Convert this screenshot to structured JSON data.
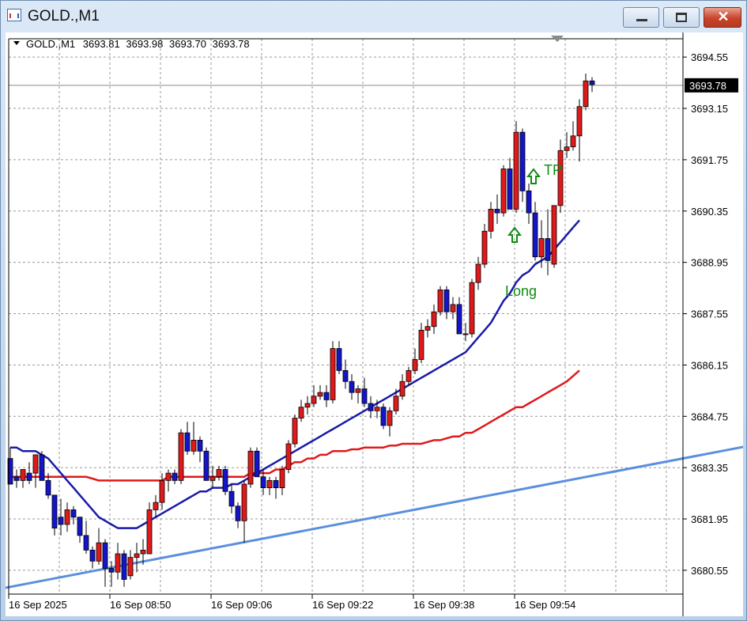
{
  "window": {
    "title": "GOLD.,M1"
  },
  "chart_header": {
    "symbol": "GOLD.,M1",
    "open": "3693.81",
    "high": "3693.98",
    "low": "3693.70",
    "close": "3693.78"
  },
  "price_axis": {
    "labels": [
      "3694.55",
      "3693.15",
      "3691.75",
      "3690.35",
      "3688.95",
      "3687.55",
      "3686.15",
      "3684.75",
      "3683.35",
      "3681.95",
      "3680.55"
    ],
    "current_price": "3693.78"
  },
  "time_axis": {
    "labels": [
      "16 Sep 2025",
      "16 Sep 08:50",
      "16 Sep 09:06",
      "16 Sep 09:22",
      "16 Sep 09:38",
      "16 Sep 09:54"
    ]
  },
  "annotations": {
    "tp_label": "TP",
    "long_label": "Long"
  },
  "colors": {
    "bull": "#e0191b",
    "bear": "#1414c8",
    "ma_fast": "#1a1aa8",
    "ma_slow": "#e0191b",
    "trendline": "#5b8fde",
    "annotation": "#138a13"
  },
  "chart_data": {
    "type": "candlestick",
    "ylim": [
      3679.9,
      3695.05
    ],
    "candles": [
      [
        3683.6,
        3683.9,
        3682.9,
        3682.9
      ],
      [
        3683.1,
        3683.3,
        3682.8,
        3683.0
      ],
      [
        3683.0,
        3683.3,
        3682.8,
        3683.3
      ],
      [
        3683.2,
        3683.5,
        3682.9,
        3683.0
      ],
      [
        3683.2,
        3683.7,
        3682.8,
        3683.7
      ],
      [
        3683.7,
        3683.8,
        3683.0,
        3683.0
      ],
      [
        3683.0,
        3683.2,
        3682.5,
        3682.6
      ],
      [
        3682.6,
        3682.6,
        3681.5,
        3681.7
      ],
      [
        3682.0,
        3682.5,
        3681.5,
        3681.8
      ],
      [
        3681.8,
        3682.4,
        3681.6,
        3682.2
      ],
      [
        3682.2,
        3682.3,
        3681.8,
        3682.0
      ],
      [
        3682.0,
        3682.0,
        3681.3,
        3681.5
      ],
      [
        3681.5,
        3681.9,
        3681.0,
        3681.1
      ],
      [
        3681.1,
        3681.2,
        3680.6,
        3680.8
      ],
      [
        3680.8,
        3681.7,
        3680.7,
        3681.3
      ],
      [
        3681.3,
        3681.4,
        3680.1,
        3680.6
      ],
      [
        3680.6,
        3680.8,
        3680.1,
        3680.5
      ],
      [
        3680.5,
        3681.3,
        3680.3,
        3681.0
      ],
      [
        3681.0,
        3681.1,
        3680.1,
        3680.3
      ],
      [
        3680.4,
        3681.1,
        3680.3,
        3680.9
      ],
      [
        3680.9,
        3681.3,
        3680.5,
        3681.0
      ],
      [
        3681.0,
        3681.4,
        3680.7,
        3681.1
      ],
      [
        3681.0,
        3682.4,
        3681.0,
        3682.2
      ],
      [
        3682.2,
        3682.6,
        3682.0,
        3682.4
      ],
      [
        3682.4,
        3683.2,
        3682.2,
        3683.0
      ],
      [
        3683.0,
        3683.3,
        3682.7,
        3683.2
      ],
      [
        3683.2,
        3683.3,
        3682.9,
        3683.0
      ],
      [
        3683.0,
        3684.4,
        3682.9,
        3684.3
      ],
      [
        3684.3,
        3684.6,
        3683.7,
        3683.8
      ],
      [
        3683.8,
        3684.6,
        3683.7,
        3684.1
      ],
      [
        3684.1,
        3684.2,
        3683.5,
        3683.8
      ],
      [
        3683.8,
        3683.9,
        3683.0,
        3683.0
      ],
      [
        3683.0,
        3683.4,
        3682.8,
        3683.1
      ],
      [
        3683.1,
        3683.4,
        3683.0,
        3683.3
      ],
      [
        3683.3,
        3683.4,
        3682.6,
        3682.7
      ],
      [
        3682.7,
        3682.9,
        3682.1,
        3682.3
      ],
      [
        3682.3,
        3682.4,
        3681.7,
        3681.9
      ],
      [
        3681.9,
        3683.0,
        3681.3,
        3682.9
      ],
      [
        3682.9,
        3683.9,
        3682.8,
        3683.8
      ],
      [
        3683.8,
        3683.9,
        3683.1,
        3683.1
      ],
      [
        3683.1,
        3683.3,
        3682.6,
        3682.8
      ],
      [
        3682.8,
        3683.1,
        3682.6,
        3683.0
      ],
      [
        3683.0,
        3683.1,
        3682.5,
        3682.8
      ],
      [
        3682.8,
        3683.4,
        3682.6,
        3683.3
      ],
      [
        3683.3,
        3684.1,
        3683.2,
        3684.0
      ],
      [
        3684.0,
        3684.8,
        3683.9,
        3684.7
      ],
      [
        3684.7,
        3685.2,
        3684.6,
        3685.0
      ],
      [
        3685.0,
        3685.3,
        3684.8,
        3685.1
      ],
      [
        3685.1,
        3685.6,
        3685.0,
        3685.3
      ],
      [
        3685.3,
        3685.6,
        3685.2,
        3685.4
      ],
      [
        3685.4,
        3685.6,
        3685.0,
        3685.2
      ],
      [
        3685.2,
        3686.8,
        3685.1,
        3686.6
      ],
      [
        3686.6,
        3686.8,
        3685.9,
        3686.0
      ],
      [
        3686.0,
        3686.3,
        3685.5,
        3685.7
      ],
      [
        3685.7,
        3685.9,
        3685.2,
        3685.4
      ],
      [
        3685.4,
        3685.6,
        3685.1,
        3685.5
      ],
      [
        3685.5,
        3685.8,
        3685.0,
        3685.1
      ],
      [
        3685.1,
        3685.3,
        3684.7,
        3684.9
      ],
      [
        3684.9,
        3685.2,
        3684.7,
        3685.0
      ],
      [
        3685.0,
        3685.1,
        3684.4,
        3684.5
      ],
      [
        3684.5,
        3685.0,
        3684.2,
        3684.9
      ],
      [
        3684.9,
        3685.5,
        3684.8,
        3685.3
      ],
      [
        3685.3,
        3685.9,
        3685.2,
        3685.7
      ],
      [
        3685.7,
        3686.1,
        3685.6,
        3686.0
      ],
      [
        3686.0,
        3686.6,
        3685.9,
        3686.3
      ],
      [
        3686.3,
        3687.3,
        3686.2,
        3687.1
      ],
      [
        3687.1,
        3687.4,
        3686.9,
        3687.2
      ],
      [
        3687.2,
        3687.8,
        3687.0,
        3687.6
      ],
      [
        3687.6,
        3688.3,
        3687.5,
        3688.2
      ],
      [
        3688.2,
        3688.3,
        3687.4,
        3687.6
      ],
      [
        3687.6,
        3688.0,
        3687.4,
        3687.8
      ],
      [
        3687.8,
        3688.0,
        3687.0,
        3687.0
      ],
      [
        3687.0,
        3687.3,
        3686.8,
        3687.0
      ],
      [
        3687.0,
        3688.5,
        3686.9,
        3688.4
      ],
      [
        3688.4,
        3689.1,
        3688.2,
        3688.9
      ],
      [
        3688.9,
        3690.0,
        3688.8,
        3689.8
      ],
      [
        3689.8,
        3690.6,
        3689.6,
        3690.4
      ],
      [
        3690.4,
        3690.8,
        3690.0,
        3690.3
      ],
      [
        3690.3,
        3691.6,
        3690.2,
        3691.5
      ],
      [
        3691.5,
        3691.8,
        3690.4,
        3690.4
      ],
      [
        3690.4,
        3692.8,
        3690.3,
        3692.5
      ],
      [
        3692.5,
        3692.6,
        3690.6,
        3690.9
      ],
      [
        3690.9,
        3691.1,
        3690.0,
        3690.3
      ],
      [
        3690.3,
        3690.6,
        3689.0,
        3689.1
      ],
      [
        3689.1,
        3690.1,
        3688.8,
        3689.6
      ],
      [
        3689.6,
        3690.4,
        3688.6,
        3689.0
      ],
      [
        3688.9,
        3690.5,
        3688.8,
        3690.5
      ],
      [
        3690.5,
        3692.3,
        3690.3,
        3692.0
      ],
      [
        3692.0,
        3692.5,
        3691.8,
        3692.1
      ],
      [
        3692.1,
        3692.8,
        3692.0,
        3692.4
      ],
      [
        3692.4,
        3693.4,
        3691.7,
        3693.2
      ],
      [
        3693.2,
        3694.1,
        3693.1,
        3693.9
      ],
      [
        3693.9,
        3694.0,
        3693.6,
        3693.8
      ]
    ],
    "ma_fast": [
      3683.9,
      3683.9,
      3683.8,
      3683.8,
      3683.8,
      3683.7,
      3683.6,
      3683.4,
      3683.2,
      3683.0,
      3682.8,
      3682.6,
      3682.4,
      3682.2,
      3682.0,
      3681.9,
      3681.8,
      3681.7,
      3681.7,
      3681.7,
      3681.7,
      3681.8,
      3681.9,
      3682.0,
      3682.1,
      3682.2,
      3682.3,
      3682.4,
      3682.5,
      3682.6,
      3682.7,
      3682.7,
      3682.8,
      3682.8,
      3682.8,
      3682.9,
      3682.9,
      3683.0,
      3683.1,
      3683.2,
      3683.3,
      3683.4,
      3683.5,
      3683.6,
      3683.7,
      3683.8,
      3683.9,
      3684.0,
      3684.1,
      3684.2,
      3684.3,
      3684.4,
      3684.5,
      3684.6,
      3684.7,
      3684.8,
      3684.9,
      3685.0,
      3685.1,
      3685.2,
      3685.3,
      3685.4,
      3685.5,
      3685.6,
      3685.7,
      3685.8,
      3685.9,
      3686.0,
      3686.1,
      3686.2,
      3686.3,
      3686.4,
      3686.5,
      3686.7,
      3686.9,
      3687.1,
      3687.3,
      3687.6,
      3687.9,
      3688.1,
      3688.4,
      3688.6,
      3688.7,
      3688.9,
      3689.0,
      3689.1,
      3689.3,
      3689.5,
      3689.7,
      3689.9,
      3690.1
    ],
    "ma_slow": [
      3683.1,
      3683.1,
      3683.1,
      3683.1,
      3683.1,
      3683.1,
      3683.1,
      3683.1,
      3683.1,
      3683.1,
      3683.1,
      3683.1,
      3683.1,
      3683.05,
      3683.0,
      3683.0,
      3683.0,
      3683.0,
      3683.0,
      3683.0,
      3683.0,
      3683.0,
      3683.0,
      3683.0,
      3683.0,
      3683.1,
      3683.1,
      3683.1,
      3683.1,
      3683.1,
      3683.1,
      3683.1,
      3683.1,
      3683.1,
      3683.1,
      3683.1,
      3683.1,
      3683.1,
      3683.2,
      3683.2,
      3683.2,
      3683.2,
      3683.3,
      3683.3,
      3683.4,
      3683.5,
      3683.5,
      3683.6,
      3683.6,
      3683.7,
      3683.7,
      3683.8,
      3683.8,
      3683.8,
      3683.85,
      3683.85,
      3683.9,
      3683.9,
      3683.9,
      3683.9,
      3683.95,
      3683.95,
      3684.0,
      3684.0,
      3684.0,
      3684.0,
      3684.05,
      3684.1,
      3684.1,
      3684.15,
      3684.2,
      3684.2,
      3684.3,
      3684.3,
      3684.4,
      3684.5,
      3684.6,
      3684.7,
      3684.8,
      3684.9,
      3685.0,
      3685.0,
      3685.1,
      3685.2,
      3685.3,
      3685.4,
      3685.5,
      3685.6,
      3685.7,
      3685.85,
      3686.0
    ],
    "trendline": {
      "from": [
        -6,
        3679.9
      ],
      "to": [
        120,
        3684.05
      ]
    }
  }
}
